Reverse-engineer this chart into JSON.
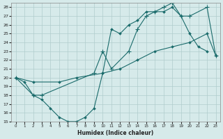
{
  "xlabel": "Humidex (Indice chaleur)",
  "bg_color": "#d6eaea",
  "grid_color": "#b0cccc",
  "line_color": "#1a6b6b",
  "xlim": [
    -0.5,
    23.5
  ],
  "ylim": [
    15,
    28.5
  ],
  "xticks": [
    0,
    1,
    2,
    3,
    4,
    5,
    6,
    7,
    8,
    9,
    10,
    11,
    12,
    13,
    14,
    15,
    16,
    17,
    18,
    19,
    20,
    21,
    22,
    23
  ],
  "yticks": [
    15,
    16,
    17,
    18,
    19,
    20,
    21,
    22,
    23,
    24,
    25,
    26,
    27,
    28
  ],
  "line1_x": [
    0,
    1,
    2,
    3,
    4,
    5,
    6,
    7,
    8,
    9,
    10,
    11,
    12,
    13,
    14,
    15,
    16,
    17,
    18,
    19,
    20,
    21,
    22
  ],
  "line1_y": [
    20,
    19.5,
    18,
    17.5,
    16.5,
    15.5,
    15,
    15,
    15.5,
    16.5,
    20.5,
    25.5,
    25,
    26,
    26.5,
    27.5,
    27.5,
    27.5,
    28,
    27,
    25,
    23.5,
    23
  ],
  "line2_x": [
    0,
    2,
    5,
    7,
    10,
    12,
    14,
    16,
    18,
    20,
    22,
    23
  ],
  "line2_y": [
    20,
    19.5,
    19.5,
    20,
    20.5,
    21,
    22,
    23,
    23.5,
    24,
    25,
    22.5
  ],
  "line3_x": [
    0,
    2,
    3,
    9,
    10,
    11,
    13,
    14,
    15,
    16,
    17,
    18,
    19,
    20,
    22,
    23
  ],
  "line3_y": [
    20,
    18,
    18,
    20.5,
    23,
    21,
    23,
    25.5,
    27,
    27.5,
    28,
    28.5,
    27,
    27,
    28,
    22.5
  ]
}
